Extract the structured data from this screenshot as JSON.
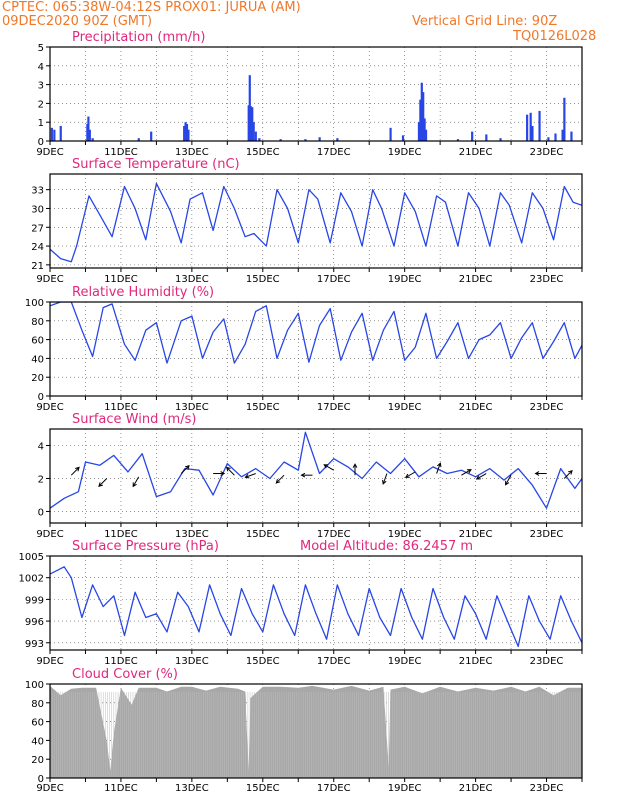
{
  "header": {
    "line1": "CPTEC:   065:38W-04:12S   PROX01: JURUA (AM)",
    "line2": "09DEC2020 90Z (GMT)",
    "grid_note": "Vertical Grid Line: 90Z",
    "code": "TQ0126L028",
    "model_altitude": "Model Altitude: 86.2457 m"
  },
  "colors": {
    "header": "#f0782a",
    "title": "#e0287d",
    "line": "#2846e6",
    "bar": "#2846e6",
    "cloud": "#a8a8a8",
    "arrow": "#000000",
    "grid": "#555555"
  },
  "chart_data": [
    {
      "id": "precip",
      "type": "bar",
      "title": "Precipitation (mm/h)",
      "x_ticks": [
        "9DEC",
        "11DEC",
        "13DEC",
        "15DEC",
        "17DEC",
        "19DEC",
        "21DEC",
        "23DEC"
      ],
      "y_ticks": [
        "0",
        "1",
        "2",
        "3",
        "4",
        "5"
      ],
      "ylim": [
        0,
        5
      ],
      "xlim": [
        0,
        15
      ],
      "grid": true,
      "values": [
        [
          0.05,
          0.7
        ],
        [
          0.12,
          0.6
        ],
        [
          0.3,
          0.8
        ],
        [
          1.05,
          0.9
        ],
        [
          1.08,
          1.3
        ],
        [
          1.12,
          0.6
        ],
        [
          1.2,
          0.15
        ],
        [
          2.5,
          0.15
        ],
        [
          2.85,
          0.5
        ],
        [
          3.78,
          0.8
        ],
        [
          3.82,
          1.0
        ],
        [
          3.86,
          0.9
        ],
        [
          3.9,
          0.6
        ],
        [
          5.6,
          1.9
        ],
        [
          5.63,
          3.5
        ],
        [
          5.66,
          1.85
        ],
        [
          5.7,
          1.8
        ],
        [
          5.74,
          1.0
        ],
        [
          5.8,
          0.5
        ],
        [
          5.9,
          0.15
        ],
        [
          6.5,
          0.1
        ],
        [
          7.2,
          0.1
        ],
        [
          7.6,
          0.2
        ],
        [
          8.1,
          0.15
        ],
        [
          9.6,
          0.7
        ],
        [
          9.95,
          0.3
        ],
        [
          10.4,
          1.0
        ],
        [
          10.44,
          2.2
        ],
        [
          10.48,
          3.1
        ],
        [
          10.52,
          2.6
        ],
        [
          10.56,
          1.2
        ],
        [
          10.6,
          0.6
        ],
        [
          11.5,
          0.1
        ],
        [
          11.9,
          0.5
        ],
        [
          12.3,
          0.35
        ],
        [
          12.7,
          0.15
        ],
        [
          13.45,
          1.4
        ],
        [
          13.55,
          1.5
        ],
        [
          13.6,
          0.8
        ],
        [
          13.8,
          1.6
        ],
        [
          14.05,
          0.2
        ],
        [
          14.25,
          0.4
        ],
        [
          14.45,
          0.6
        ],
        [
          14.5,
          2.3
        ],
        [
          14.7,
          0.5
        ]
      ]
    },
    {
      "id": "temp",
      "type": "line",
      "title": "Surface Temperature (nC)",
      "x_ticks": [
        "9DEC",
        "11DEC",
        "13DEC",
        "15DEC",
        "17DEC",
        "19DEC",
        "21DEC",
        "23DEC"
      ],
      "y_ticks": [
        "21",
        "24",
        "27",
        "30",
        "33"
      ],
      "ylim": [
        20.5,
        35.5
      ],
      "xlim": [
        0,
        15
      ],
      "grid": true,
      "x": [
        0,
        0.3,
        0.6,
        0.75,
        1.1,
        1.4,
        1.75,
        2.1,
        2.4,
        2.7,
        3.0,
        3.4,
        3.7,
        3.95,
        4.3,
        4.6,
        4.9,
        5.2,
        5.5,
        5.75,
        6.1,
        6.4,
        6.7,
        7.0,
        7.3,
        7.55,
        7.9,
        8.2,
        8.5,
        8.8,
        9.1,
        9.35,
        9.7,
        10.0,
        10.3,
        10.6,
        10.9,
        11.15,
        11.5,
        11.8,
        12.1,
        12.4,
        12.7,
        12.95,
        13.3,
        13.6,
        13.9,
        14.2,
        14.5,
        14.75,
        15.0
      ],
      "values": [
        23.5,
        22,
        21.5,
        24,
        32,
        29,
        25.5,
        33.5,
        30,
        25,
        34,
        29.5,
        24.5,
        31.5,
        32.5,
        26.5,
        33.5,
        30,
        25.5,
        26,
        24,
        33,
        30,
        24.5,
        33,
        31.5,
        24.5,
        32.5,
        29.5,
        24,
        33,
        30,
        24,
        32.5,
        29.5,
        24,
        32,
        31,
        24,
        32.5,
        30,
        24,
        32.5,
        30.5,
        24.5,
        32.5,
        30,
        25,
        33.5,
        31,
        30.5
      ]
    },
    {
      "id": "rh",
      "type": "line",
      "title": "Relative Humidity (%)",
      "x_ticks": [
        "9DEC",
        "11DEC",
        "13DEC",
        "15DEC",
        "17DEC",
        "19DEC",
        "21DEC",
        "23DEC"
      ],
      "y_ticks": [
        "0",
        "20",
        "40",
        "60",
        "80",
        "100"
      ],
      "ylim": [
        0,
        100
      ],
      "xlim": [
        0,
        15
      ],
      "grid": true,
      "x": [
        0,
        0.3,
        0.6,
        0.9,
        1.2,
        1.5,
        1.75,
        2.1,
        2.4,
        2.7,
        3.0,
        3.3,
        3.7,
        4.0,
        4.3,
        4.6,
        4.9,
        5.2,
        5.5,
        5.8,
        6.1,
        6.4,
        6.7,
        7.0,
        7.3,
        7.6,
        7.9,
        8.2,
        8.5,
        8.8,
        9.1,
        9.4,
        9.7,
        10.0,
        10.3,
        10.6,
        10.9,
        11.2,
        11.5,
        11.8,
        12.1,
        12.4,
        12.7,
        13.0,
        13.3,
        13.6,
        13.9,
        14.2,
        14.5,
        14.8,
        15.0
      ],
      "values": [
        96,
        100,
        100,
        70,
        42,
        94,
        98,
        55,
        38,
        70,
        78,
        35,
        80,
        85,
        40,
        68,
        82,
        35,
        55,
        90,
        96,
        40,
        70,
        88,
        36,
        75,
        93,
        38,
        68,
        88,
        38,
        70,
        90,
        38,
        52,
        88,
        40,
        58,
        78,
        40,
        60,
        65,
        78,
        40,
        62,
        78,
        40,
        58,
        78,
        40,
        54
      ]
    },
    {
      "id": "wind",
      "type": "line",
      "title": "Surface Wind (m/s)",
      "x_ticks": [
        "9DEC",
        "11DEC",
        "13DEC",
        "15DEC",
        "17DEC",
        "19DEC",
        "21DEC",
        "23DEC"
      ],
      "y_ticks": [
        "0",
        "2",
        "4"
      ],
      "ylim": [
        -0.7,
        5.0
      ],
      "xlim": [
        0,
        15
      ],
      "grid": true,
      "x": [
        0,
        0.4,
        0.8,
        1.0,
        1.4,
        1.8,
        2.2,
        2.6,
        3.0,
        3.4,
        3.8,
        4.2,
        4.6,
        5.0,
        5.4,
        5.8,
        6.2,
        6.6,
        7.0,
        7.2,
        7.6,
        8.0,
        8.4,
        8.8,
        9.2,
        9.6,
        10.0,
        10.4,
        10.8,
        11.2,
        11.6,
        12.0,
        12.4,
        12.8,
        13.2,
        13.6,
        14.0,
        14.4,
        14.8,
        15.0
      ],
      "values": [
        0.2,
        0.8,
        1.2,
        3.0,
        2.8,
        3.4,
        2.4,
        3.5,
        0.9,
        1.2,
        2.6,
        2.5,
        1.0,
        2.9,
        2.1,
        2.6,
        2.0,
        3.0,
        2.5,
        4.8,
        2.3,
        3.2,
        2.7,
        2.0,
        3.0,
        2.3,
        3.2,
        2.1,
        2.7,
        2.3,
        2.5,
        2.1,
        2.6,
        1.9,
        2.6,
        1.6,
        0.2,
        2.6,
        1.4,
        2.0
      ],
      "arrows": [
        [
          0.6,
          2.2,
          45
        ],
        [
          1.6,
          2.0,
          225
        ],
        [
          2.5,
          2.1,
          210
        ],
        [
          3.7,
          2.3,
          45
        ],
        [
          4.6,
          2.3,
          90
        ],
        [
          5.2,
          2.2,
          315
        ],
        [
          5.8,
          2.3,
          250
        ],
        [
          6.6,
          2.2,
          225
        ],
        [
          7.4,
          2.2,
          270
        ],
        [
          8.0,
          2.5,
          300
        ],
        [
          8.6,
          2.2,
          0
        ],
        [
          9.5,
          2.3,
          200
        ],
        [
          10.3,
          2.4,
          240
        ],
        [
          10.9,
          2.3,
          20
        ],
        [
          11.6,
          2.2,
          60
        ],
        [
          12.3,
          2.3,
          240
        ],
        [
          13.0,
          2.2,
          210
        ],
        [
          14.0,
          2.3,
          270
        ],
        [
          14.5,
          2.0,
          45
        ]
      ]
    },
    {
      "id": "press",
      "type": "line",
      "title": "Surface Pressure (hPa)",
      "x_ticks": [
        "9DEC",
        "11DEC",
        "13DEC",
        "15DEC",
        "17DEC",
        "19DEC",
        "21DEC",
        "23DEC"
      ],
      "y_ticks": [
        "993",
        "996",
        "999",
        "1002",
        "1005"
      ],
      "ylim": [
        992,
        1005
      ],
      "xlim": [
        0,
        15
      ],
      "grid": true,
      "x": [
        0,
        0.4,
        0.6,
        0.9,
        1.2,
        1.5,
        1.8,
        2.1,
        2.4,
        2.7,
        3.0,
        3.3,
        3.6,
        3.9,
        4.2,
        4.5,
        4.8,
        5.1,
        5.4,
        5.7,
        6.0,
        6.3,
        6.6,
        6.9,
        7.2,
        7.5,
        7.8,
        8.1,
        8.4,
        8.7,
        9.0,
        9.3,
        9.6,
        9.9,
        10.2,
        10.5,
        10.8,
        11.1,
        11.4,
        11.7,
        12.0,
        12.3,
        12.6,
        12.9,
        13.2,
        13.5,
        13.8,
        14.1,
        14.4,
        14.7,
        15.0
      ],
      "values": [
        1002.5,
        1003.5,
        1002,
        996.5,
        1001,
        998,
        999.5,
        994,
        1000,
        996.5,
        997,
        994.5,
        1000,
        998,
        994.5,
        1001,
        997,
        994,
        1000.5,
        997,
        994.5,
        1001,
        997,
        994,
        1001,
        997,
        993.5,
        1001,
        997,
        994,
        1000.5,
        996.5,
        994,
        1000.5,
        996.5,
        993.5,
        1000.5,
        996.5,
        993.5,
        999.5,
        997,
        993.5,
        999.5,
        996,
        992.5,
        999.5,
        996,
        993.5,
        999.5,
        996,
        993
      ]
    },
    {
      "id": "cloud",
      "type": "bar",
      "title": "Cloud Cover (%)",
      "x_ticks": [
        "9DEC",
        "11DEC",
        "13DEC",
        "15DEC",
        "17DEC",
        "19DEC",
        "21DEC",
        "23DEC"
      ],
      "y_ticks": [
        "0",
        "20",
        "40",
        "60",
        "80",
        "100"
      ],
      "ylim": [
        0,
        100
      ],
      "xlim": [
        0,
        15
      ],
      "grid": true,
      "profile": [
        [
          0,
          98
        ],
        [
          0.3,
          88
        ],
        [
          0.6,
          95
        ],
        [
          0.9,
          96
        ],
        [
          1.3,
          96
        ],
        [
          1.6,
          40
        ],
        [
          1.7,
          8
        ],
        [
          1.8,
          48
        ],
        [
          2.0,
          96
        ],
        [
          2.3,
          78
        ],
        [
          2.5,
          96
        ],
        [
          3.0,
          96
        ],
        [
          3.3,
          92
        ],
        [
          3.7,
          97
        ],
        [
          4.0,
          97
        ],
        [
          4.4,
          93
        ],
        [
          4.8,
          97
        ],
        [
          5.3,
          95
        ],
        [
          5.5,
          92
        ],
        [
          5.6,
          8
        ],
        [
          5.65,
          85
        ],
        [
          6.0,
          97
        ],
        [
          6.5,
          97
        ],
        [
          7.0,
          96
        ],
        [
          7.4,
          98
        ],
        [
          8.0,
          94
        ],
        [
          8.5,
          98
        ],
        [
          9.0,
          93
        ],
        [
          9.4,
          97
        ],
        [
          9.55,
          12
        ],
        [
          9.6,
          94
        ],
        [
          10.0,
          97
        ],
        [
          10.5,
          90
        ],
        [
          11.0,
          97
        ],
        [
          11.5,
          92
        ],
        [
          12.0,
          96
        ],
        [
          12.5,
          93
        ],
        [
          13.0,
          97
        ],
        [
          13.4,
          92
        ],
        [
          13.8,
          97
        ],
        [
          14.2,
          88
        ],
        [
          14.6,
          96
        ],
        [
          15.0,
          96
        ]
      ]
    }
  ]
}
